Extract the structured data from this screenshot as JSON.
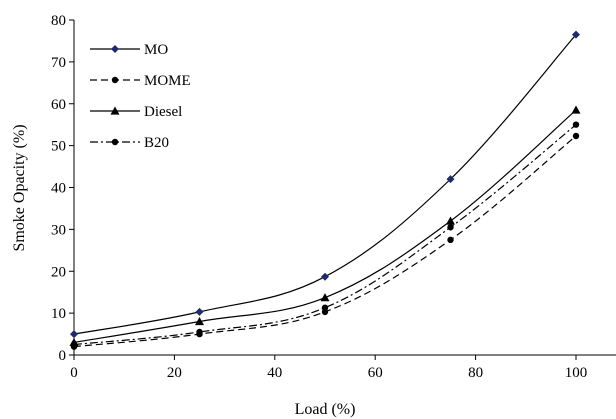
{
  "chart_data": {
    "type": "line",
    "title": "",
    "xlabel": "Load (%)",
    "ylabel": "Smoke Opacity (%)",
    "xlim": [
      0,
      100
    ],
    "ylim": [
      0,
      80
    ],
    "x_ticks": [
      "0",
      "20",
      "40",
      "60",
      "80",
      "100"
    ],
    "y_ticks": [
      "0",
      "10",
      "20",
      "30",
      "40",
      "50",
      "60",
      "70",
      "80"
    ],
    "x": [
      0,
      25,
      50,
      75,
      100
    ],
    "series": [
      {
        "name": "MO",
        "values": [
          5.0,
          10.3,
          18.7,
          42.0,
          76.5
        ],
        "marker": "diamond",
        "dash": "solid",
        "marker_color": "#1f2a6e"
      },
      {
        "name": "MOME",
        "values": [
          2.0,
          5.0,
          10.3,
          27.5,
          52.3
        ],
        "marker": "circle",
        "dash": "dashed",
        "marker_color": "#000000"
      },
      {
        "name": "Diesel",
        "values": [
          3.0,
          8.0,
          13.7,
          32.0,
          58.5
        ],
        "marker": "triangle",
        "dash": "solid",
        "marker_color": "#000000"
      },
      {
        "name": "B20",
        "values": [
          2.5,
          5.5,
          11.3,
          30.5,
          55.0
        ],
        "marker": "circle",
        "dash": "dashdot",
        "marker_color": "#000000"
      }
    ],
    "grid": false,
    "legend_position": "top-left"
  }
}
